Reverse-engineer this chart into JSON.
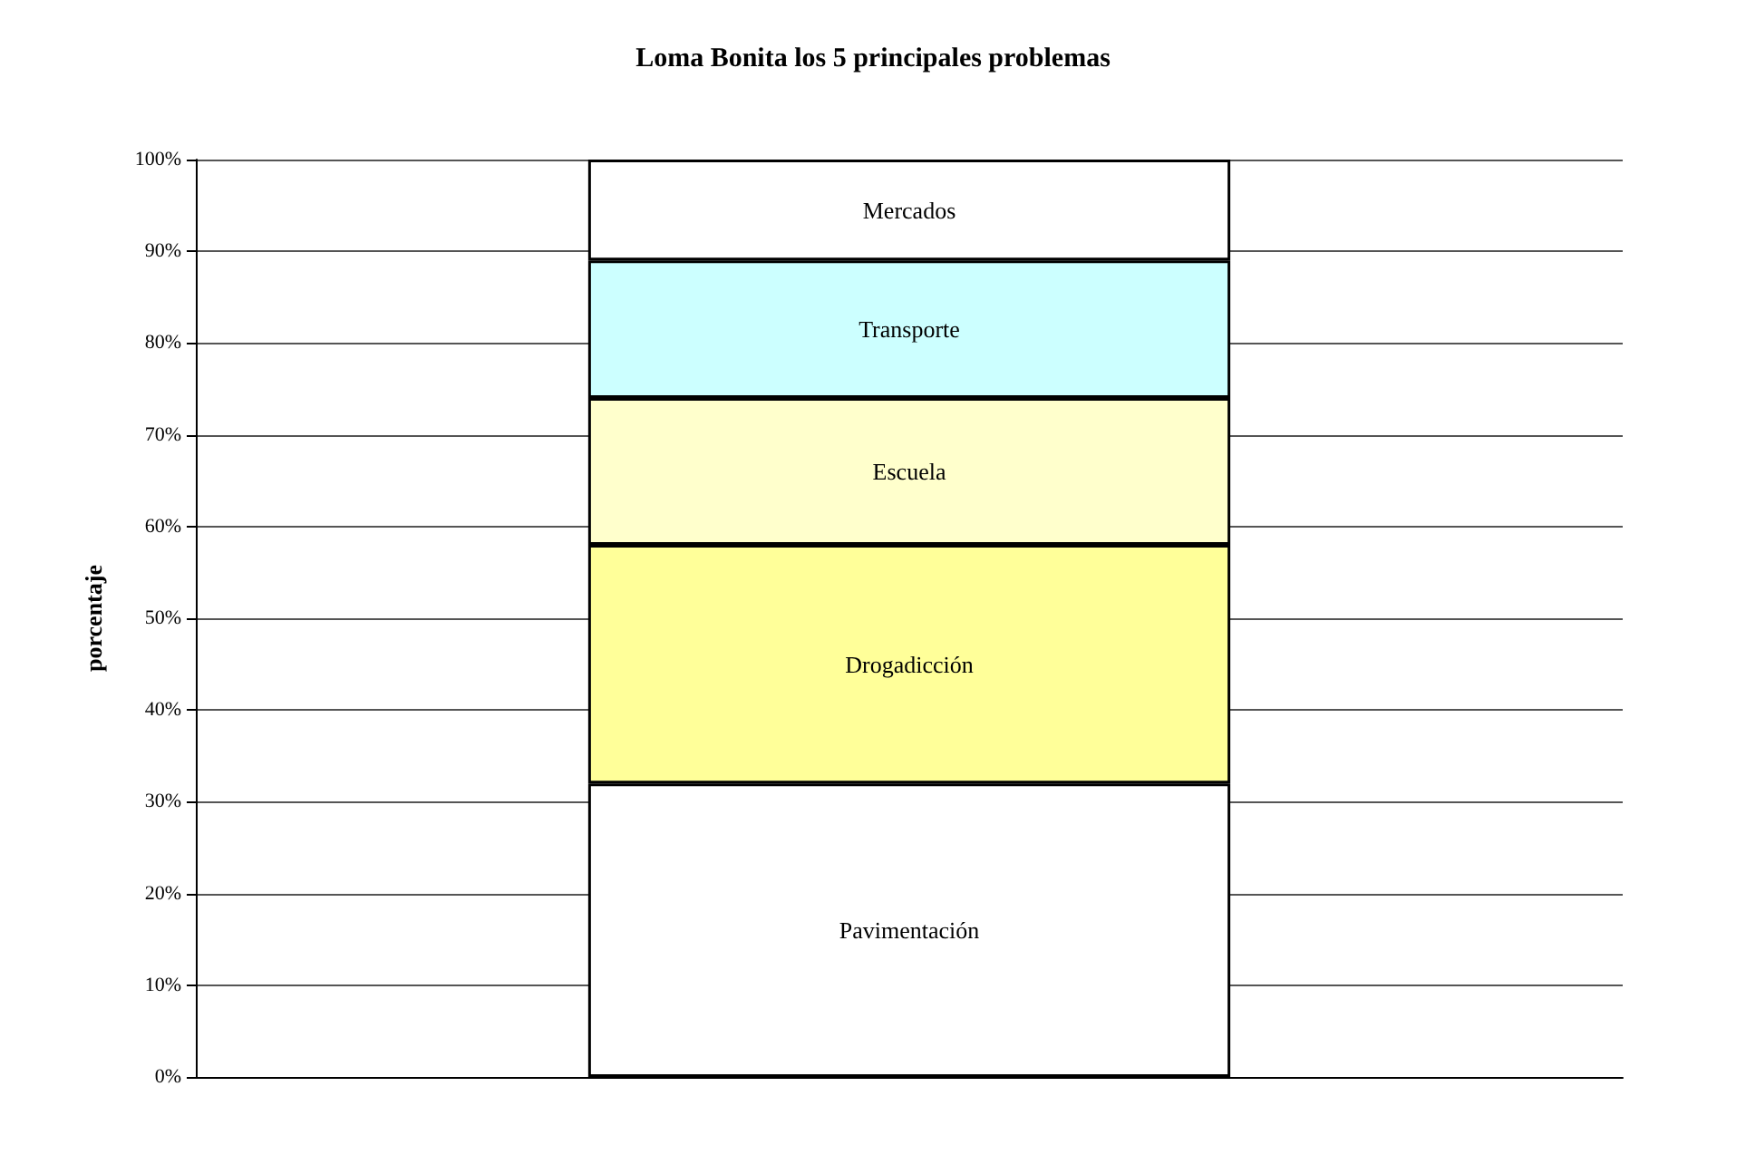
{
  "chart_data": {
    "type": "bar",
    "title": "Loma Bonita los 5 principales problemas",
    "ylabel": "porcentaje",
    "categories": [
      null
    ],
    "stacked": true,
    "grid": "y",
    "legend": false,
    "ylim": [
      0,
      100
    ],
    "yticks": [
      {
        "value": 0,
        "label": "0%"
      },
      {
        "value": 10,
        "label": "10%"
      },
      {
        "value": 20,
        "label": "20%"
      },
      {
        "value": 30,
        "label": "30%"
      },
      {
        "value": 40,
        "label": "40%"
      },
      {
        "value": 50,
        "label": "50%"
      },
      {
        "value": 60,
        "label": "60%"
      },
      {
        "value": 70,
        "label": "70%"
      },
      {
        "value": 80,
        "label": "80%"
      },
      {
        "value": 90,
        "label": "90%"
      },
      {
        "value": 100,
        "label": "100%"
      }
    ],
    "series": [
      {
        "name": "Pavimentación",
        "color": "#ffffff",
        "values": [
          32
        ]
      },
      {
        "name": "Drogadicción",
        "color": "#ffff99",
        "values": [
          26
        ]
      },
      {
        "name": "Escuela",
        "color": "#ffffcc",
        "values": [
          16
        ]
      },
      {
        "name": "Transporte",
        "color": "#ccffff",
        "values": [
          15
        ]
      },
      {
        "name": "Mercados",
        "color": "#ffffff",
        "values": [
          11
        ]
      }
    ]
  }
}
